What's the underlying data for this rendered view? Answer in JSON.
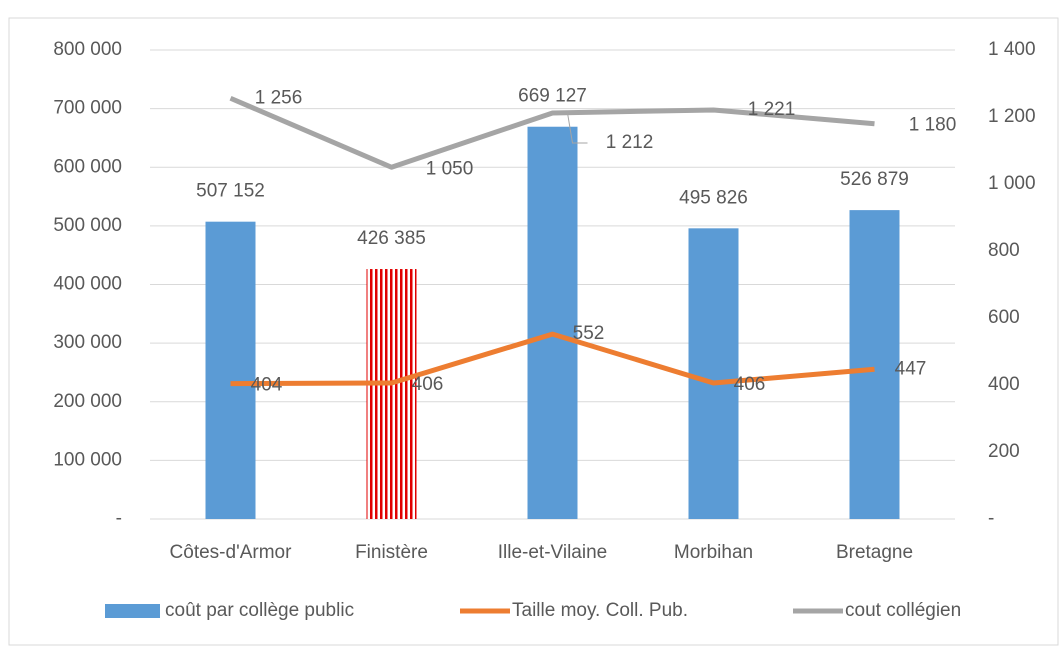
{
  "chart_data": {
    "type": "bar_line",
    "categories": [
      "Côtes-d'Armor",
      "Finistère",
      "Ille-et-Vilaine",
      "Morbihan",
      "Bretagne"
    ],
    "series": [
      {
        "name": "coût par collège public",
        "type": "bar",
        "axis": "y",
        "color": "#5b9bd5",
        "point_colors": [
          "#5b9bd5",
          "#e00000",
          "#5b9bd5",
          "#5b9bd5",
          "#5b9bd5"
        ],
        "values": [
          507152,
          426385,
          669127,
          495826,
          526879
        ],
        "value_labels": [
          "507 152",
          "426 385",
          "669 127",
          "495 826",
          "526 879"
        ]
      },
      {
        "name": "Taille moy. Coll. Pub.",
        "type": "line",
        "axis": "y2",
        "color": "#ed7d31",
        "values": [
          404,
          406,
          552,
          406,
          447
        ]
      },
      {
        "name": "cout collégien",
        "type": "line",
        "axis": "y2",
        "color": "#a5a5a5",
        "values": [
          1256,
          1050,
          1212,
          1221,
          1180
        ],
        "value_labels": [
          "1 256",
          "1 050",
          "1 212",
          "1 221",
          "1 180"
        ]
      }
    ],
    "ylim": [
      0,
      800000
    ],
    "yticks": [
      {
        "value": 0,
        "label": "-"
      },
      {
        "value": 100000,
        "label": "100 000"
      },
      {
        "value": 200000,
        "label": "200 000"
      },
      {
        "value": 300000,
        "label": "300 000"
      },
      {
        "value": 400000,
        "label": "400 000"
      },
      {
        "value": 500000,
        "label": "500 000"
      },
      {
        "value": 600000,
        "label": "600 000"
      },
      {
        "value": 700000,
        "label": "700 000"
      },
      {
        "value": 800000,
        "label": "800 000"
      }
    ],
    "y2lim": [
      0,
      1400
    ],
    "y2ticks": [
      {
        "value": 0,
        "label": "-"
      },
      200,
      400,
      600,
      800,
      {
        "value": 1000,
        "label": "1 000"
      },
      {
        "value": 1200,
        "label": "1 200"
      },
      {
        "value": 1400,
        "label": "1 400"
      }
    ],
    "grid": true,
    "legend": "bottom"
  }
}
